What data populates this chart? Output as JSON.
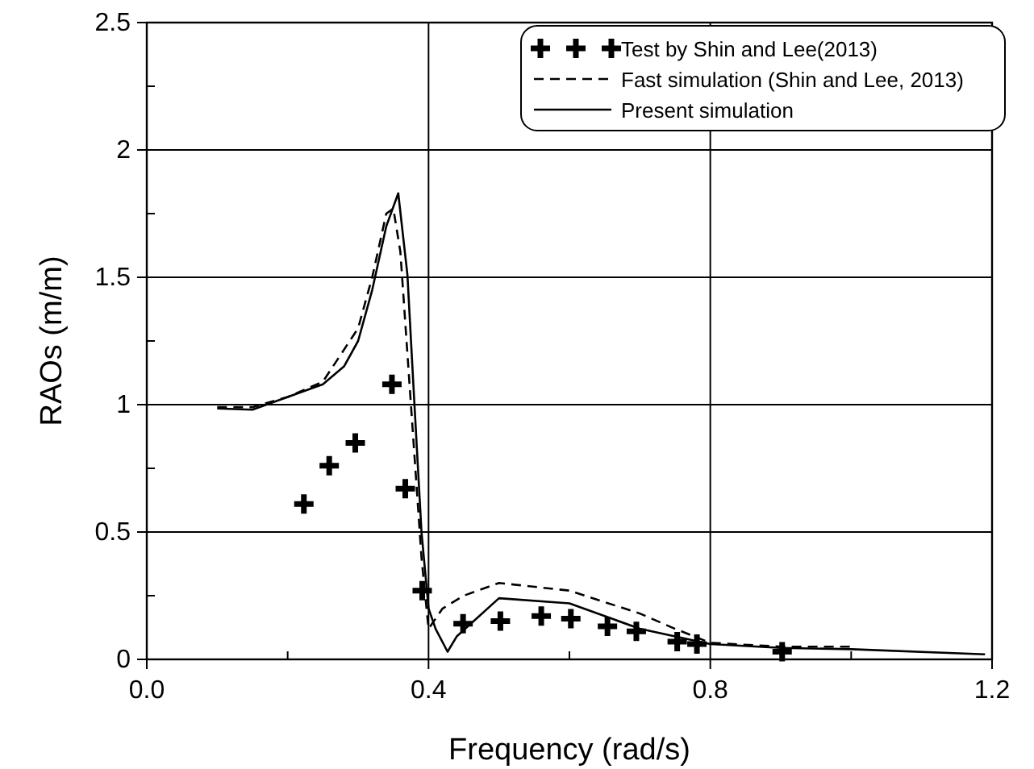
{
  "chart_data": {
    "type": "line",
    "xlabel": "Frequency (rad/s)",
    "ylabel": "RAOs (m/m)",
    "xlim": [
      0,
      1.2
    ],
    "xticks": [
      {
        "value": 0,
        "label": "0.0"
      },
      {
        "value": 0.2,
        "label": null
      },
      {
        "value": 0.4,
        "label": "0.4"
      },
      {
        "value": 0.6,
        "label": null
      },
      {
        "value": 0.8,
        "label": "0.8"
      },
      {
        "value": 1.0,
        "label": null
      },
      {
        "value": 1.2,
        "label": "1.2"
      }
    ],
    "ylim": [
      0,
      2.5
    ],
    "yticks": [
      0,
      {
        "value": 0.25,
        "label": null
      },
      0.5,
      {
        "value": 0.75,
        "label": null
      },
      1,
      {
        "value": 1.25,
        "label": null
      },
      1.5,
      {
        "value": 1.75,
        "label": null
      },
      2,
      {
        "value": 2.25,
        "label": null
      },
      2.5
    ],
    "grid": true,
    "legend": "top right",
    "series": [
      {
        "name": "Test by Shin and Lee(2013)",
        "type": "scatter",
        "marker": "cross",
        "color": "#000000",
        "x": [
          0.223,
          0.259,
          0.296,
          0.348,
          0.367,
          0.391,
          0.449,
          0.502,
          0.56,
          0.602,
          0.654,
          0.695,
          0.753,
          0.781,
          0.902
        ],
        "values": [
          0.61,
          0.76,
          0.85,
          1.08,
          0.67,
          0.27,
          0.14,
          0.15,
          0.17,
          0.16,
          0.13,
          0.11,
          0.07,
          0.06,
          0.03
        ]
      },
      {
        "name": "Fast simulation (Shin and Lee, 2013)",
        "line_style": "dashed",
        "color": "#000000",
        "x": [
          0.1,
          0.15,
          0.2,
          0.25,
          0.3,
          0.32,
          0.34,
          0.35,
          0.36,
          0.37,
          0.38,
          0.39,
          0.4,
          0.42,
          0.45,
          0.5,
          0.6,
          0.7,
          0.75,
          0.8,
          0.9,
          1.0
        ],
        "values": [
          0.99,
          0.99,
          1.03,
          1.09,
          1.3,
          1.5,
          1.75,
          1.77,
          1.6,
          1.2,
          0.8,
          0.4,
          0.12,
          0.2,
          0.25,
          0.3,
          0.27,
          0.18,
          0.12,
          0.065,
          0.05,
          0.05
        ]
      },
      {
        "name": "Present simulation",
        "line_style": "solid",
        "color": "#000000",
        "x": [
          0.1,
          0.15,
          0.2,
          0.25,
          0.28,
          0.3,
          0.32,
          0.34,
          0.357,
          0.37,
          0.38,
          0.39,
          0.4,
          0.41,
          0.427,
          0.44,
          0.5,
          0.6,
          0.65,
          0.7,
          0.8,
          0.9,
          1.0,
          1.19
        ],
        "values": [
          0.985,
          0.98,
          1.03,
          1.08,
          1.15,
          1.25,
          1.45,
          1.7,
          1.83,
          1.51,
          1.0,
          0.5,
          0.2,
          0.12,
          0.03,
          0.09,
          0.24,
          0.22,
          0.17,
          0.12,
          0.06,
          0.045,
          0.04,
          0.02
        ]
      }
    ]
  }
}
